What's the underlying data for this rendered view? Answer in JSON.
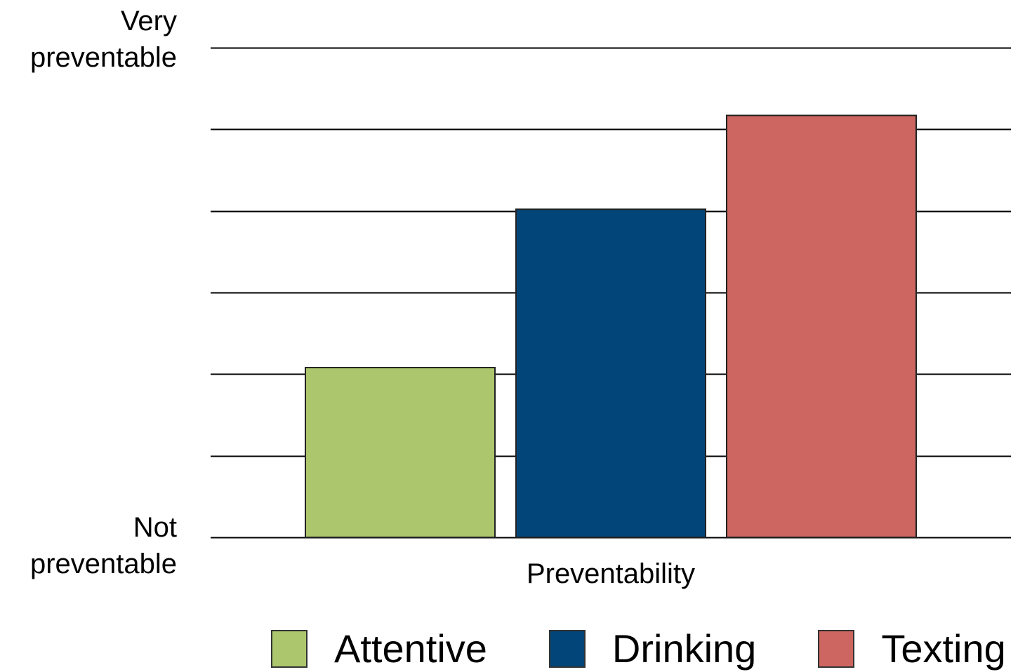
{
  "chart_data": {
    "type": "bar",
    "title": "",
    "xlabel": "Preventability",
    "ylabel": "",
    "y_tick_labels": {
      "top": "Very preventable",
      "bottom": "Not preventable"
    },
    "ylim": [
      0,
      6
    ],
    "gridlines": [
      0,
      1,
      2,
      3,
      4,
      5,
      6
    ],
    "grid": true,
    "categories": [
      "Preventability"
    ],
    "series": [
      {
        "name": "Attentive",
        "values": [
          2.08
        ],
        "color": "#acc66d"
      },
      {
        "name": "Drinking",
        "values": [
          4.02
        ],
        "color": "#024679"
      },
      {
        "name": "Texting",
        "values": [
          5.17
        ],
        "color": "#cd6660"
      }
    ],
    "legend_position": "bottom"
  }
}
